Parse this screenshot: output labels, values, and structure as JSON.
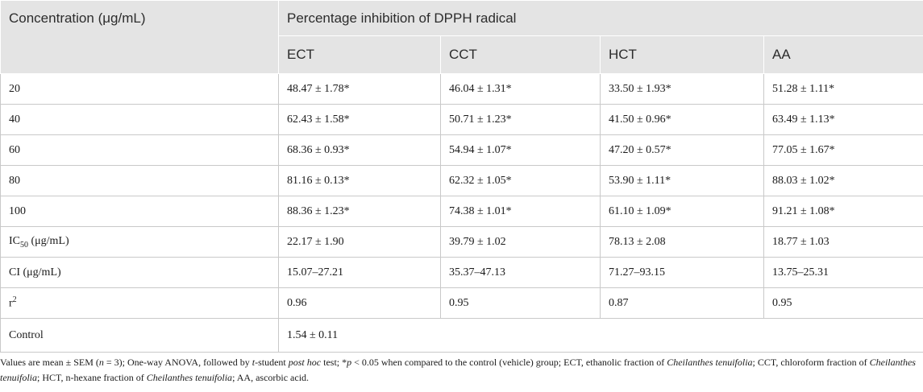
{
  "table": {
    "col0_header": "Concentration (μg/mL)",
    "group_header": "Percentage inhibition of DPPH radical",
    "columns": [
      "ECT",
      "CCT",
      "HCT",
      "AA"
    ],
    "rows": [
      {
        "label": "20",
        "values": [
          "48.47 ± 1.78*",
          "46.04 ± 1.31*",
          "33.50 ± 1.93*",
          "51.28 ± 1.11*"
        ]
      },
      {
        "label": "40",
        "values": [
          "62.43 ± 1.58*",
          "50.71 ± 1.23*",
          "41.50 ± 0.96*",
          "63.49 ± 1.13*"
        ]
      },
      {
        "label": "60",
        "values": [
          "68.36 ± 0.93*",
          "54.94 ± 1.07*",
          "47.20 ± 0.57*",
          "77.05 ± 1.67*"
        ]
      },
      {
        "label": "80",
        "values": [
          "81.16 ± 0.13*",
          "62.32 ± 1.05*",
          "53.90 ± 1.11*",
          "88.03 ± 1.02*"
        ]
      },
      {
        "label": "100",
        "values": [
          "88.36 ± 1.23*",
          "74.38 ± 1.01*",
          "61.10 ± 1.09*",
          "91.21 ± 1.08*"
        ]
      }
    ],
    "ic50": {
      "label_main": "IC",
      "label_sub": "50",
      "label_rest": " (μg/mL)",
      "values": [
        "22.17 ± 1.90",
        "39.79 ± 1.02",
        "78.13 ± 2.08",
        "18.77 ± 1.03"
      ]
    },
    "ci": {
      "label": "CI (μg/mL)",
      "values": [
        "15.07–27.21",
        "35.37–47.13",
        "71.27–93.15",
        "13.75–25.31"
      ]
    },
    "r2": {
      "label_main": "r",
      "label_sup": "2",
      "values": [
        "0.96",
        "0.95",
        "0.87",
        "0.95"
      ]
    },
    "control": {
      "label": "Control",
      "value": "1.54 ± 0.11"
    }
  },
  "footnote": {
    "p1": "Values are mean ± SEM (",
    "n": "n",
    "p2": " = 3); One-way ANOVA, followed by ",
    "t": "t",
    "p3": "-student ",
    "posthoc": "post hoc",
    "p4": " test; *",
    "p": "p",
    "p5": " < 0.05 when compared to the control (vehicle) group; ECT, ethanolic fraction of ",
    "species1": "Cheilanthes tenuifolia",
    "p6": "; CCT, chloroform fraction of ",
    "species2": "Cheilanthes tenuifolia",
    "p7": "; HCT, n-hexane fraction of ",
    "species3": "Cheilanthes tenuifolia",
    "p8": "; AA, ascorbic acid."
  }
}
